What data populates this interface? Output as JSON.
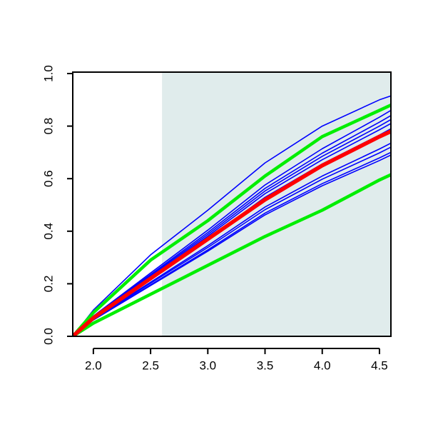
{
  "chart_data": {
    "type": "line",
    "x": [
      1.82,
      2.0,
      2.5,
      3.0,
      3.5,
      4.0,
      4.5,
      4.6
    ],
    "xlim": [
      1.82,
      4.6
    ],
    "ylim": [
      0,
      1
    ],
    "xticks": [
      {
        "value": 2,
        "label": "2.0"
      },
      2.5,
      {
        "value": 3,
        "label": "3.0"
      },
      3.5,
      {
        "value": 4,
        "label": "4.0"
      },
      4.5
    ],
    "yticks": [
      {
        "value": 0,
        "label": "0.0"
      },
      0.2,
      0.4,
      0.6,
      0.8,
      {
        "value": 1,
        "label": "1.0"
      }
    ],
    "shaded_region": {
      "xlim": [
        2.6,
        4.6
      ],
      "color": "#e0ecec"
    },
    "series": [
      {
        "color": "#0000ff",
        "linewidth": 1.6,
        "values": [
          0,
          0.1,
          0.31,
          0.48,
          0.66,
          0.8,
          0.9,
          0.915
        ]
      },
      {
        "color": "#0000ff",
        "linewidth": 1.6,
        "values": [
          0,
          0.077,
          0.241,
          0.404,
          0.576,
          0.714,
          0.834,
          0.86
        ]
      },
      {
        "color": "#0000ff",
        "linewidth": 1.6,
        "values": [
          0,
          0.076,
          0.235,
          0.395,
          0.563,
          0.697,
          0.815,
          0.84
        ]
      },
      {
        "color": "#0000ff",
        "linewidth": 1.6,
        "values": [
          0,
          0.074,
          0.231,
          0.388,
          0.553,
          0.685,
          0.8,
          0.825
        ]
      },
      {
        "color": "#0000ff",
        "linewidth": 1.6,
        "values": [
          0,
          0.073,
          0.227,
          0.381,
          0.543,
          0.672,
          0.786,
          0.81
        ]
      },
      {
        "color": "#0000ff",
        "linewidth": 1.6,
        "values": [
          0,
          0.071,
          0.221,
          0.371,
          0.529,
          0.656,
          0.766,
          0.79
        ]
      },
      {
        "color": "#0000ff",
        "linewidth": 1.6,
        "values": [
          0,
          0.066,
          0.206,
          0.345,
          0.492,
          0.61,
          0.713,
          0.735
        ]
      },
      {
        "color": "#0000ff",
        "linewidth": 1.6,
        "values": [
          0,
          0.065,
          0.202,
          0.338,
          0.482,
          0.598,
          0.698,
          0.72
        ]
      },
      {
        "color": "#0000ff",
        "linewidth": 1.6,
        "values": [
          0,
          0.063,
          0.196,
          0.329,
          0.469,
          0.581,
          0.679,
          0.7
        ]
      },
      {
        "color": "#0000ff",
        "linewidth": 1.6,
        "values": [
          0,
          0.062,
          0.193,
          0.324,
          0.462,
          0.573,
          0.669,
          0.69
        ]
      },
      {
        "color": "#00ee00",
        "linewidth": 4.5,
        "values": [
          0,
          0.09,
          0.29,
          0.44,
          0.61,
          0.76,
          0.86,
          0.88
        ]
      },
      {
        "color": "#00ee00",
        "linewidth": 4.5,
        "values": [
          0,
          0.05,
          0.16,
          0.27,
          0.38,
          0.48,
          0.595,
          0.615
        ]
      },
      {
        "color": "#ff0000",
        "linewidth": 5.5,
        "values": [
          0,
          0.07,
          0.22,
          0.37,
          0.52,
          0.65,
          0.76,
          0.78
        ]
      }
    ]
  }
}
